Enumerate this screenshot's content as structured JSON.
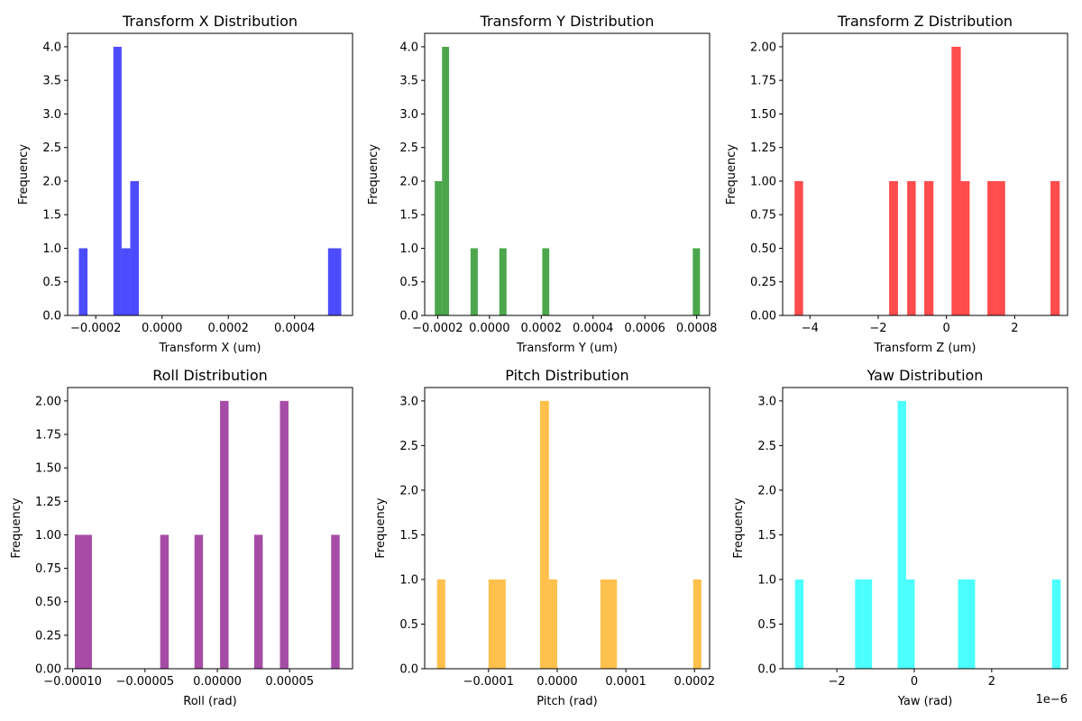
{
  "chart_data": [
    {
      "type": "bar",
      "title": "Transform X Distribution",
      "xlabel": "Transform X (um)",
      "ylabel": "Frequency",
      "color": "#0000ff",
      "opacity": 0.7,
      "xlim": [
        -0.000285,
        0.000575
      ],
      "ylim": [
        0,
        4.2
      ],
      "xticks": [
        -0.0002,
        0,
        0.0002,
        0.0004
      ],
      "xtick_labels": [
        "−0.0002",
        "0.0000",
        "0.0002",
        "0.0004"
      ],
      "yticks": [
        0,
        0.5,
        1,
        1.5,
        2,
        2.5,
        3,
        3.5,
        4
      ],
      "ytick_labels": [
        "0.0",
        "0.5",
        "1.0",
        "1.5",
        "2.0",
        "2.5",
        "3.0",
        "3.5",
        "4.0"
      ],
      "bins": [
        {
          "x0": -0.000251,
          "x1": -0.000225,
          "count": 1
        },
        {
          "x0": -0.000147,
          "x1": -0.000122,
          "count": 4
        },
        {
          "x0": -0.000122,
          "x1": -9.6e-05,
          "count": 1
        },
        {
          "x0": -9.6e-05,
          "x1": -7e-05,
          "count": 2
        },
        {
          "x0": 0.000501,
          "x1": 0.000541,
          "count": 1
        }
      ],
      "offset_label": ""
    },
    {
      "type": "bar",
      "title": "Transform Y Distribution",
      "xlabel": "Transform Y (um)",
      "ylabel": "Frequency",
      "color": "#008000",
      "opacity": 0.7,
      "xlim": [
        -0.00025,
        0.00085
      ],
      "ylim": [
        0,
        4.2
      ],
      "xticks": [
        -0.0002,
        0,
        0.0002,
        0.0004,
        0.0006,
        0.0008
      ],
      "xtick_labels": [
        "−0.0002",
        "0.0000",
        "0.0002",
        "0.0004",
        "0.0006",
        "0.0008"
      ],
      "yticks": [
        0,
        0.5,
        1,
        1.5,
        2,
        2.5,
        3,
        3.5,
        4
      ],
      "ytick_labels": [
        "0.0",
        "0.5",
        "1.0",
        "1.5",
        "2.0",
        "2.5",
        "3.0",
        "3.5",
        "4.0"
      ],
      "bins": [
        {
          "x0": -0.000211,
          "x1": -0.000183,
          "count": 2
        },
        {
          "x0": -0.000183,
          "x1": -0.000156,
          "count": 4
        },
        {
          "x0": -7.3e-05,
          "x1": -4.5e-05,
          "count": 1
        },
        {
          "x0": 3.8e-05,
          "x1": 6.6e-05,
          "count": 1
        },
        {
          "x0": 0.000204,
          "x1": 0.000231,
          "count": 1
        },
        {
          "x0": 0.000785,
          "x1": 0.000813,
          "count": 1
        }
      ],
      "offset_label": ""
    },
    {
      "type": "bar",
      "title": "Transform Z Distribution",
      "xlabel": "Transform Z (um)",
      "ylabel": "Frequency",
      "color": "#ff0000",
      "opacity": 0.7,
      "xlim": [
        -4.8,
        3.55
      ],
      "ylim": [
        0,
        2.1
      ],
      "xticks": [
        -4,
        -2,
        0,
        2
      ],
      "xtick_labels": [
        "−4",
        "−2",
        "0",
        "2"
      ],
      "yticks": [
        0,
        0.25,
        0.5,
        0.75,
        1,
        1.25,
        1.5,
        1.75,
        2
      ],
      "ytick_labels": [
        "0.00",
        "0.25",
        "0.50",
        "0.75",
        "1.00",
        "1.25",
        "1.50",
        "1.75",
        "2.00"
      ],
      "bins": [
        {
          "x0": -4.45,
          "x1": -4.2,
          "count": 1
        },
        {
          "x0": -1.68,
          "x1": -1.42,
          "count": 1
        },
        {
          "x0": -1.15,
          "x1": -0.9,
          "count": 1
        },
        {
          "x0": -0.65,
          "x1": -0.38,
          "count": 1
        },
        {
          "x0": 0.15,
          "x1": 0.42,
          "count": 2
        },
        {
          "x0": 0.42,
          "x1": 0.68,
          "count": 1
        },
        {
          "x0": 1.2,
          "x1": 1.46,
          "count": 1
        },
        {
          "x0": 1.46,
          "x1": 1.72,
          "count": 1
        },
        {
          "x0": 3.05,
          "x1": 3.32,
          "count": 1
        }
      ],
      "offset_label": ""
    },
    {
      "type": "bar",
      "title": "Roll Distribution",
      "xlabel": "Roll (rad)",
      "ylabel": "Frequency",
      "color": "#800080",
      "opacity": 0.7,
      "xlim": [
        -0.0001035,
        9.35e-05
      ],
      "ylim": [
        0,
        2.1
      ],
      "xticks": [
        -0.0001,
        -5e-05,
        0,
        5e-05
      ],
      "xtick_labels": [
        "−0.00010",
        "−0.00005",
        "0.00000",
        "0.00005"
      ],
      "yticks": [
        0,
        0.25,
        0.5,
        0.75,
        1,
        1.25,
        1.5,
        1.75,
        2
      ],
      "ytick_labels": [
        "0.00",
        "0.25",
        "0.50",
        "0.75",
        "1.00",
        "1.25",
        "1.50",
        "1.75",
        "2.00"
      ],
      "bins": [
        {
          "x0": -9.85e-05,
          "x1": -9.26e-05,
          "count": 1
        },
        {
          "x0": -9.26e-05,
          "x1": -8.67e-05,
          "count": 1
        },
        {
          "x0": -3.95e-05,
          "x1": -3.36e-05,
          "count": 1
        },
        {
          "x0": -1.58e-05,
          "x1": -9.9e-06,
          "count": 1
        },
        {
          "x0": 1.9e-06,
          "x1": 7.8e-06,
          "count": 2
        },
        {
          "x0": 2.55e-05,
          "x1": 3.14e-05,
          "count": 1
        },
        {
          "x0": 4.33e-05,
          "x1": 4.92e-05,
          "count": 2
        },
        {
          "x0": 7.87e-05,
          "x1": 8.46e-05,
          "count": 1
        }
      ],
      "offset_label": ""
    },
    {
      "type": "bar",
      "title": "Pitch Distribution",
      "xlabel": "Pitch (rad)",
      "ylabel": "Frequency",
      "color": "#ffa500",
      "opacity": 0.7,
      "xlim": [
        -0.000193,
        0.000222
      ],
      "ylim": [
        0,
        3.15
      ],
      "xticks": [
        -0.0001,
        0,
        0.0001,
        0.0002
      ],
      "xtick_labels": [
        "−0.0001",
        "0.0000",
        "0.0001",
        "0.0002"
      ],
      "yticks": [
        0,
        0.5,
        1,
        1.5,
        2,
        2.5,
        3
      ],
      "ytick_labels": [
        "0.0",
        "0.5",
        "1.0",
        "1.5",
        "2.0",
        "2.5",
        "3.0"
      ],
      "bins": [
        {
          "x0": -0.000175,
          "x1": -0.000163,
          "count": 1
        },
        {
          "x0": -0.0001,
          "x1": -8.8e-05,
          "count": 1
        },
        {
          "x0": -8.8e-05,
          "x1": -7.5e-05,
          "count": 1
        },
        {
          "x0": -2.5e-05,
          "x1": -1.2e-05,
          "count": 3
        },
        {
          "x0": -1.2e-05,
          "x1": 0.0,
          "count": 1
        },
        {
          "x0": 6.3e-05,
          "x1": 7.5e-05,
          "count": 1
        },
        {
          "x0": 7.5e-05,
          "x1": 8.7e-05,
          "count": 1
        },
        {
          "x0": 0.000198,
          "x1": 0.00021,
          "count": 1
        }
      ],
      "offset_label": ""
    },
    {
      "type": "bar",
      "title": "Yaw Distribution",
      "xlabel": "Yaw (rad)",
      "ylabel": "Frequency",
      "color": "#00ffff",
      "opacity": 0.7,
      "xlim": [
        -3.4,
        3.96
      ],
      "ylim": [
        0,
        3.15
      ],
      "xticks": [
        -2,
        0,
        2
      ],
      "xtick_labels": [
        "−2",
        "0",
        "2"
      ],
      "yticks": [
        0,
        0.5,
        1,
        1.5,
        2,
        2.5,
        3
      ],
      "ytick_labels": [
        "0.0",
        "0.5",
        "1.0",
        "1.5",
        "2.0",
        "2.5",
        "3.0"
      ],
      "bins": [
        {
          "x0": -3.08,
          "x1": -2.86,
          "count": 1
        },
        {
          "x0": -1.53,
          "x1": -1.31,
          "count": 1
        },
        {
          "x0": -1.31,
          "x1": -1.09,
          "count": 1
        },
        {
          "x0": -0.43,
          "x1": -0.21,
          "count": 3
        },
        {
          "x0": -0.21,
          "x1": 0.01,
          "count": 1
        },
        {
          "x0": 1.13,
          "x1": 1.35,
          "count": 1
        },
        {
          "x0": 1.35,
          "x1": 1.57,
          "count": 1
        },
        {
          "x0": 3.56,
          "x1": 3.78,
          "count": 1
        }
      ],
      "offset_label": "1e−6"
    }
  ]
}
